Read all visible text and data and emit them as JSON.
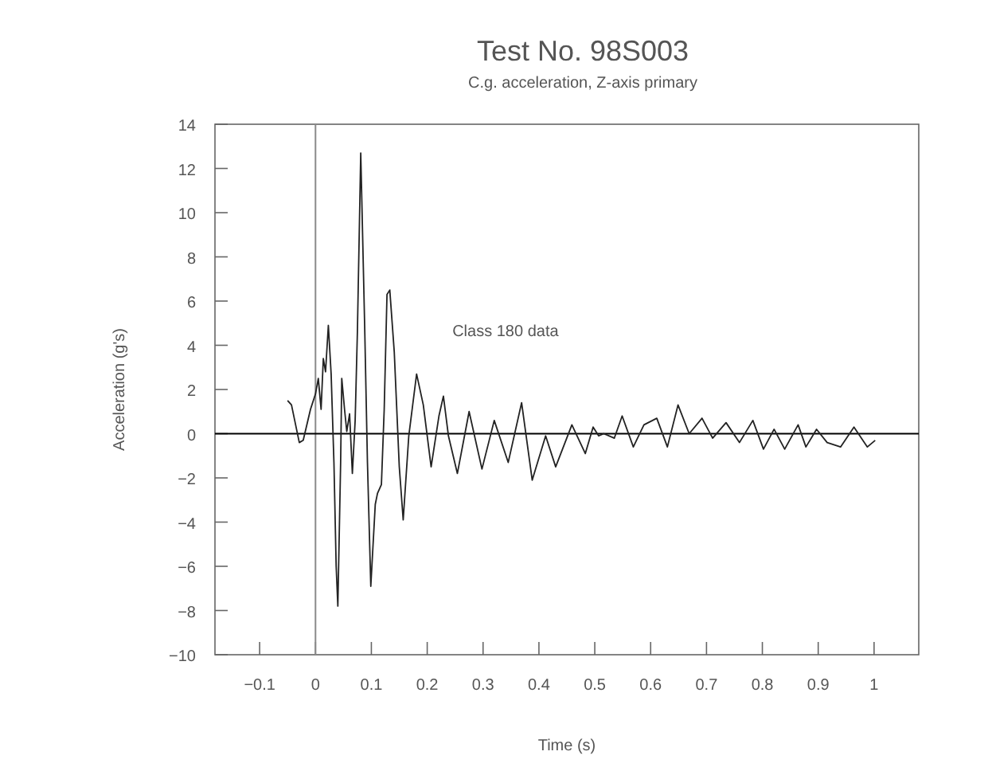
{
  "chart_data": {
    "type": "line",
    "title": "Test No. 98S003",
    "subtitle": "C.g. acceleration, Z-axis primary",
    "xlabel": "Time (s)",
    "ylabel": "Acceleration (g's)",
    "annotations": [
      "Class 180 data"
    ],
    "xlim": [
      -0.18,
      1.08
    ],
    "xticks": [
      -0.1,
      0,
      0.1,
      0.2,
      0.3,
      0.4,
      0.5,
      0.6,
      0.7,
      0.8,
      0.9,
      1
    ],
    "ylim": [
      -10,
      14
    ],
    "yticks": [
      -10,
      -8,
      -6,
      -4,
      -2,
      0,
      2,
      4,
      6,
      8,
      10,
      12,
      14
    ],
    "marker": "none",
    "line_style": "solid",
    "ref_lines": [
      {
        "axis": "x",
        "value": 0,
        "color": "#8a8a8a"
      },
      {
        "axis": "y",
        "value": 0,
        "color": "#000000"
      }
    ],
    "series": [
      {
        "color": "#222222",
        "x": [
          -0.05,
          -0.043,
          -0.029,
          -0.022,
          -0.009,
          0,
          0.005,
          0.01,
          0.014,
          0.018,
          0.023,
          0.028,
          0.033,
          0.037,
          0.04,
          0.045,
          0.047,
          0.052,
          0.056,
          0.061,
          0.066,
          0.071,
          0.075,
          0.081,
          0.088,
          0.093,
          0.099,
          0.107,
          0.111,
          0.118,
          0.123,
          0.128,
          0.133,
          0.141,
          0.15,
          0.157,
          0.167,
          0.181,
          0.193,
          0.207,
          0.221,
          0.229,
          0.238,
          0.254,
          0.275,
          0.298,
          0.32,
          0.345,
          0.369,
          0.388,
          0.412,
          0.43,
          0.459,
          0.483,
          0.497,
          0.507,
          0.516,
          0.535,
          0.549,
          0.569,
          0.588,
          0.611,
          0.63,
          0.649,
          0.669,
          0.692,
          0.711,
          0.735,
          0.759,
          0.783,
          0.802,
          0.821,
          0.84,
          0.864,
          0.878,
          0.897,
          0.916,
          0.94,
          0.964,
          0.988,
          1.002
        ],
        "values": [
          1.5,
          1.3,
          -0.4,
          -0.3,
          1.1,
          1.8,
          2.5,
          1.1,
          3.4,
          2.8,
          4.9,
          2.7,
          -1.3,
          -6,
          -7.8,
          -1.3,
          2.5,
          1.1,
          0.1,
          0.9,
          -1.8,
          0.6,
          4.6,
          12.7,
          4.9,
          -1.3,
          -6.9,
          -3.2,
          -2.7,
          -2.3,
          1.1,
          6.3,
          6.5,
          3.7,
          -1.5,
          -3.9,
          -0.1,
          2.7,
          1.3,
          -1.5,
          0.8,
          1.7,
          -0.1,
          -1.8,
          1,
          -1.6,
          0.6,
          -1.3,
          1.4,
          -2.1,
          -0.1,
          -1.5,
          0.4,
          -0.9,
          0.3,
          -0.1,
          0,
          -0.2,
          0.8,
          -0.6,
          0.4,
          0.7,
          -0.6,
          1.3,
          0,
          0.7,
          -0.2,
          0.5,
          -0.4,
          0.6,
          -0.7,
          0.2,
          -0.7,
          0.4,
          -0.6,
          0.2,
          -0.4,
          -0.6,
          0.3,
          -0.6,
          -0.3
        ]
      }
    ]
  }
}
